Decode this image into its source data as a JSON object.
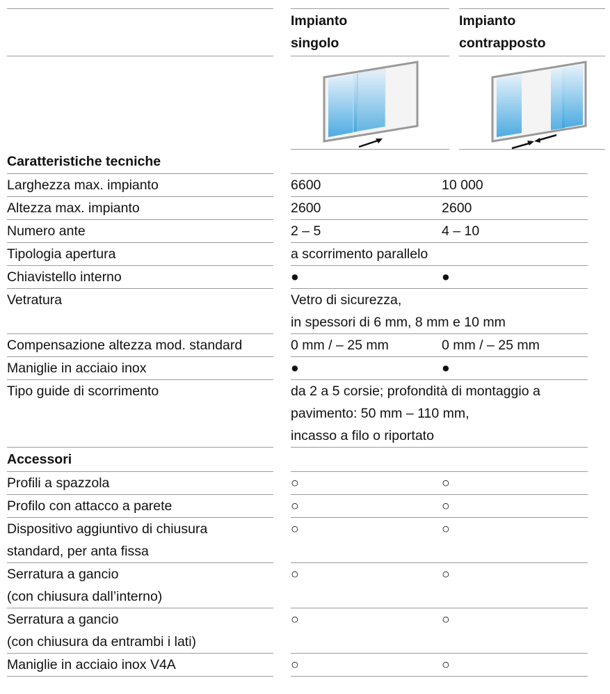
{
  "header": {
    "columns": [
      [
        "Impianto",
        "singolo"
      ],
      [
        "Impianto",
        "contrapposto"
      ]
    ]
  },
  "rows": [
    {
      "section": "Caratteristiche tecniche"
    },
    {
      "label": [
        "Larghezza max. impianto"
      ],
      "single": [
        "6600"
      ],
      "opposed": [
        "10 000"
      ]
    },
    {
      "label": [
        "Altezza max. impianto"
      ],
      "single": [
        "2600"
      ],
      "opposed": [
        "2600"
      ]
    },
    {
      "label": [
        "Numero ante"
      ],
      "single": [
        "2 – 5"
      ],
      "opposed": [
        "4 – 10"
      ]
    },
    {
      "label": [
        "Tipologia apertura"
      ],
      "both": [
        "a scorrimento parallelo"
      ]
    },
    {
      "label": [
        "Chiavistello interno"
      ],
      "single": [
        "●"
      ],
      "opposed": [
        "●"
      ]
    },
    {
      "label": [
        "Vetratura"
      ],
      "both": [
        "Vetro di sicurezza,",
        "in spessori di 6 mm, 8 mm e 10 mm"
      ]
    },
    {
      "label": [
        "Compensazione altezza mod. standard"
      ],
      "single": [
        "0 mm / – 25 mm"
      ],
      "opposed": [
        "0 mm / – 25 mm"
      ]
    },
    {
      "label": [
        "Maniglie in acciaio inox"
      ],
      "single": [
        "●"
      ],
      "opposed": [
        "●"
      ]
    },
    {
      "label": [
        "Tipo guide di scorrimento"
      ],
      "both": [
        "da 2 a 5 corsie; profondità di montaggio a",
        "pavimento: 50 mm – 110 mm,",
        "incasso a filo o riportato"
      ]
    },
    {
      "section": "Accessori"
    },
    {
      "label": [
        "Profili a spazzola"
      ],
      "single": [
        "○"
      ],
      "opposed": [
        "○"
      ]
    },
    {
      "label": [
        "Profilo con attacco a parete"
      ],
      "single": [
        "○"
      ],
      "opposed": [
        "○"
      ]
    },
    {
      "label": [
        "Dispositivo aggiuntivo di chiusura",
        "standard, per anta fissa"
      ],
      "single": [
        "○"
      ],
      "opposed": [
        "○"
      ]
    },
    {
      "label": [
        "Serratura a gancio",
        "(con chiusura dall’interno)"
      ],
      "single": [
        "○"
      ],
      "opposed": [
        "○"
      ]
    },
    {
      "label": [
        "Serratura a gancio",
        "(con chiusura da entrambi i lati)"
      ],
      "single": [
        "○"
      ],
      "opposed": [
        "○"
      ]
    },
    {
      "label": [
        "Maniglie in acciaio inox V4A"
      ],
      "single": [
        "○"
      ],
      "opposed": [
        "○"
      ]
    }
  ]
}
